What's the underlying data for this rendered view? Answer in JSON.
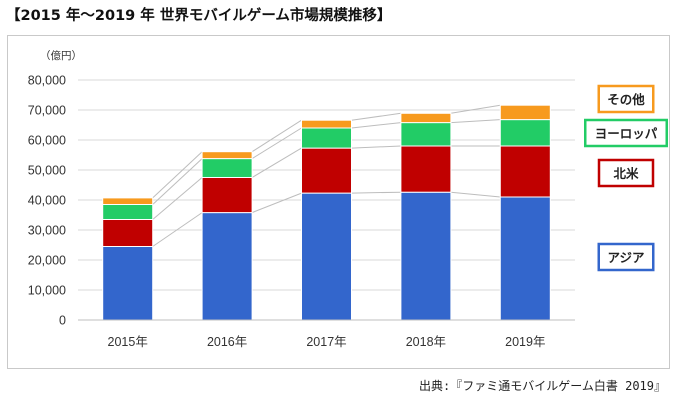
{
  "title": "【2015 年～2019 年 世界モバイルゲーム市場規模推移】",
  "source": "出典:『ファミ通モバイルゲーム白書 2019』",
  "chart_data": {
    "type": "bar",
    "stacked": true,
    "unit_label": "（億円）",
    "categories": [
      "2015年",
      "2016年",
      "2017年",
      "2018年",
      "2019年"
    ],
    "series": [
      {
        "name": "アジア",
        "values": [
          24500,
          35800,
          42300,
          42600,
          41000
        ],
        "color": "#3366cc"
      },
      {
        "name": "北米",
        "values": [
          9000,
          11700,
          15000,
          15400,
          17000
        ],
        "color": "#c00000"
      },
      {
        "name": "ヨーロッパ",
        "values": [
          5000,
          6300,
          6700,
          7800,
          8800
        ],
        "color": "#22cc66"
      },
      {
        "name": "その他",
        "values": [
          2200,
          2300,
          2600,
          3100,
          4800
        ],
        "color": "#f79a1e"
      }
    ],
    "yticks": [
      "0",
      "10,000",
      "20,000",
      "30,000",
      "40,000",
      "50,000",
      "60,000",
      "70,000",
      "80,000"
    ],
    "ylim": [
      0,
      80000
    ],
    "grid": true,
    "legend_position": "right"
  }
}
